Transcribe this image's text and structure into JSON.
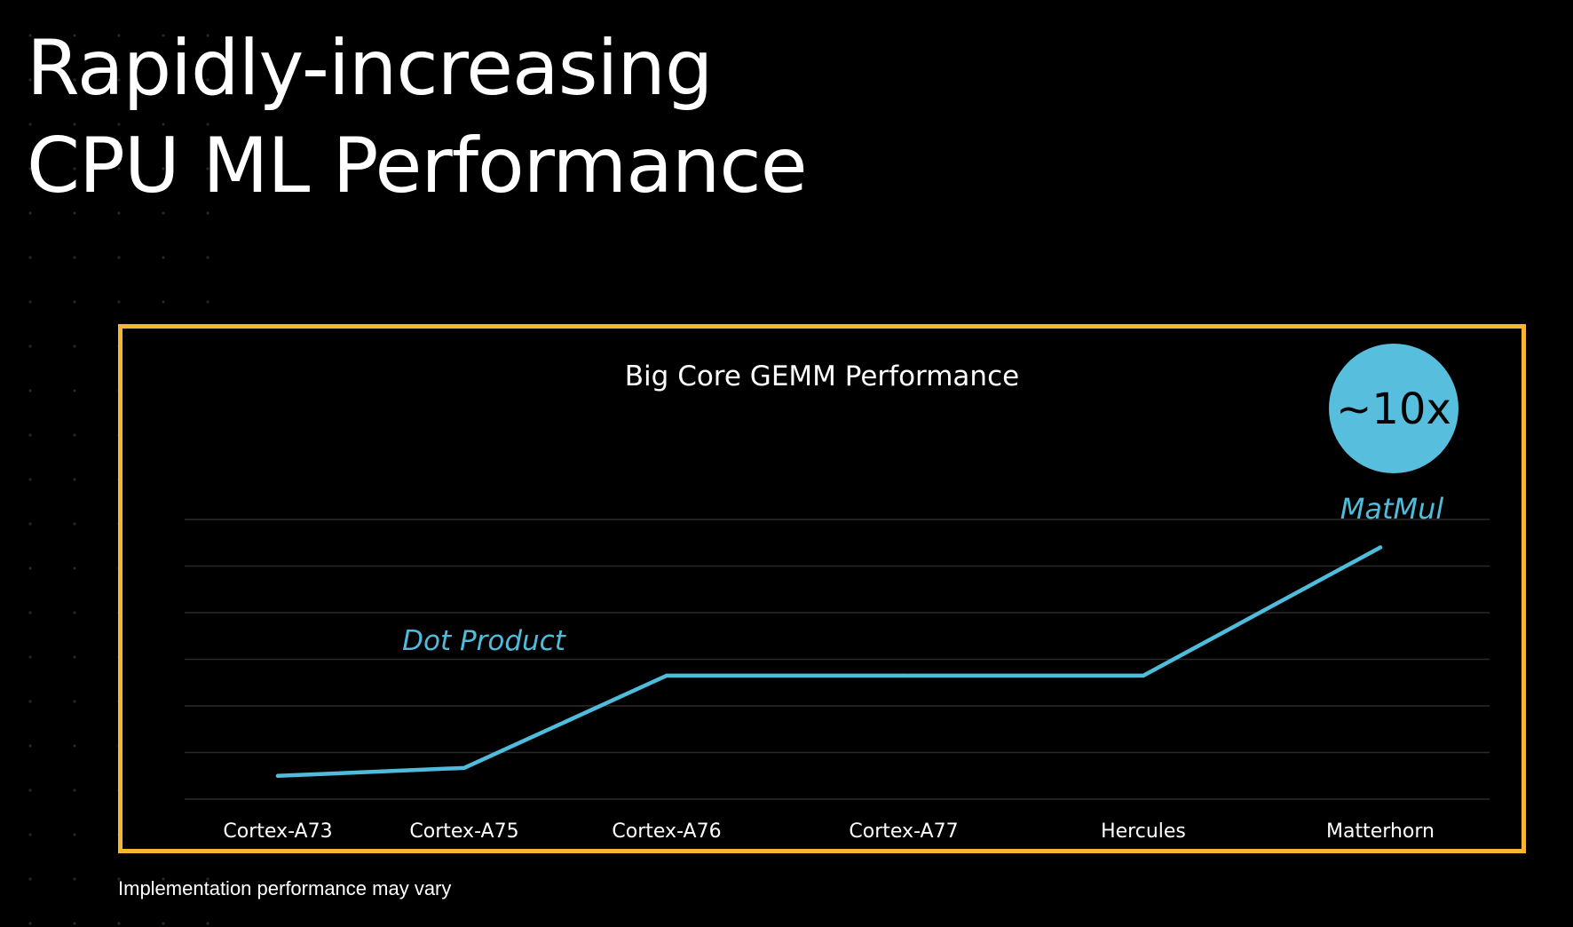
{
  "slide": {
    "title_line1": "Rapidly-increasing",
    "title_line2": "CPU ML Performance",
    "footnote": "Implementation performance may vary"
  },
  "colors": {
    "background": "#000000",
    "frame": "#f5b731",
    "line": "#4fbcdb",
    "badge": "#57bfdd",
    "gridline": "#2a2a2a",
    "text": "#ffffff"
  },
  "chart_data": {
    "type": "line",
    "title": "Big Core GEMM Performance",
    "categories": [
      "Cortex-A73",
      "Cortex-A75",
      "Cortex-A76",
      "Cortex-A77",
      "Hercules",
      "Matterhorn"
    ],
    "series": [
      {
        "values": [
          0.5,
          0.67,
          2.65,
          2.65,
          2.65,
          5.4
        ]
      }
    ],
    "ylim": [
      0,
      6
    ],
    "grid": true,
    "legend": "none",
    "annotations": [
      {
        "text": "Dot Product",
        "near_category": "Cortex-A75"
      },
      {
        "text": "MatMul",
        "near_category": "Matterhorn"
      }
    ],
    "badge": {
      "text": "~10x",
      "near_category": "Matterhorn"
    }
  }
}
